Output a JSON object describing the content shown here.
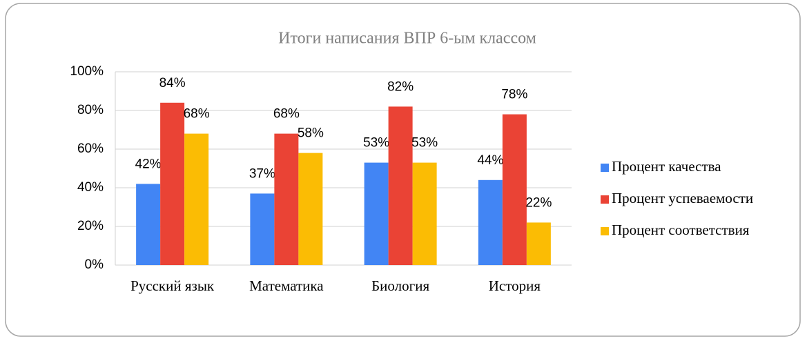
{
  "chart_data": {
    "type": "bar",
    "title": "Итоги написания ВПР 6-ым классом",
    "categories": [
      "Русский язык",
      "Математика",
      "Биология",
      "История"
    ],
    "series": [
      {
        "name": "Процент качества",
        "color": "#4285f4",
        "values": [
          42,
          37,
          53,
          44
        ],
        "value_labels": [
          "42%",
          "37%",
          "53%",
          "44%"
        ]
      },
      {
        "name": "Процент успеваемости",
        "color": "#ea4335",
        "values": [
          84,
          68,
          82,
          78
        ],
        "value_labels": [
          "84%",
          "68%",
          "82%",
          "78%"
        ]
      },
      {
        "name": "Процент соответствия",
        "color": "#fbbc04",
        "values": [
          68,
          58,
          53,
          22
        ],
        "value_labels": [
          "68%",
          "58%",
          "53%",
          "22%"
        ]
      }
    ],
    "ylim": [
      0,
      100
    ],
    "yticks": [
      {
        "value": 0,
        "label": "0%"
      },
      {
        "value": 20,
        "label": "20%"
      },
      {
        "value": 40,
        "label": "40%"
      },
      {
        "value": 60,
        "label": "60%"
      },
      {
        "value": 80,
        "label": "80%"
      },
      {
        "value": 100,
        "label": "100%"
      }
    ],
    "grid": true,
    "legend": "right"
  }
}
